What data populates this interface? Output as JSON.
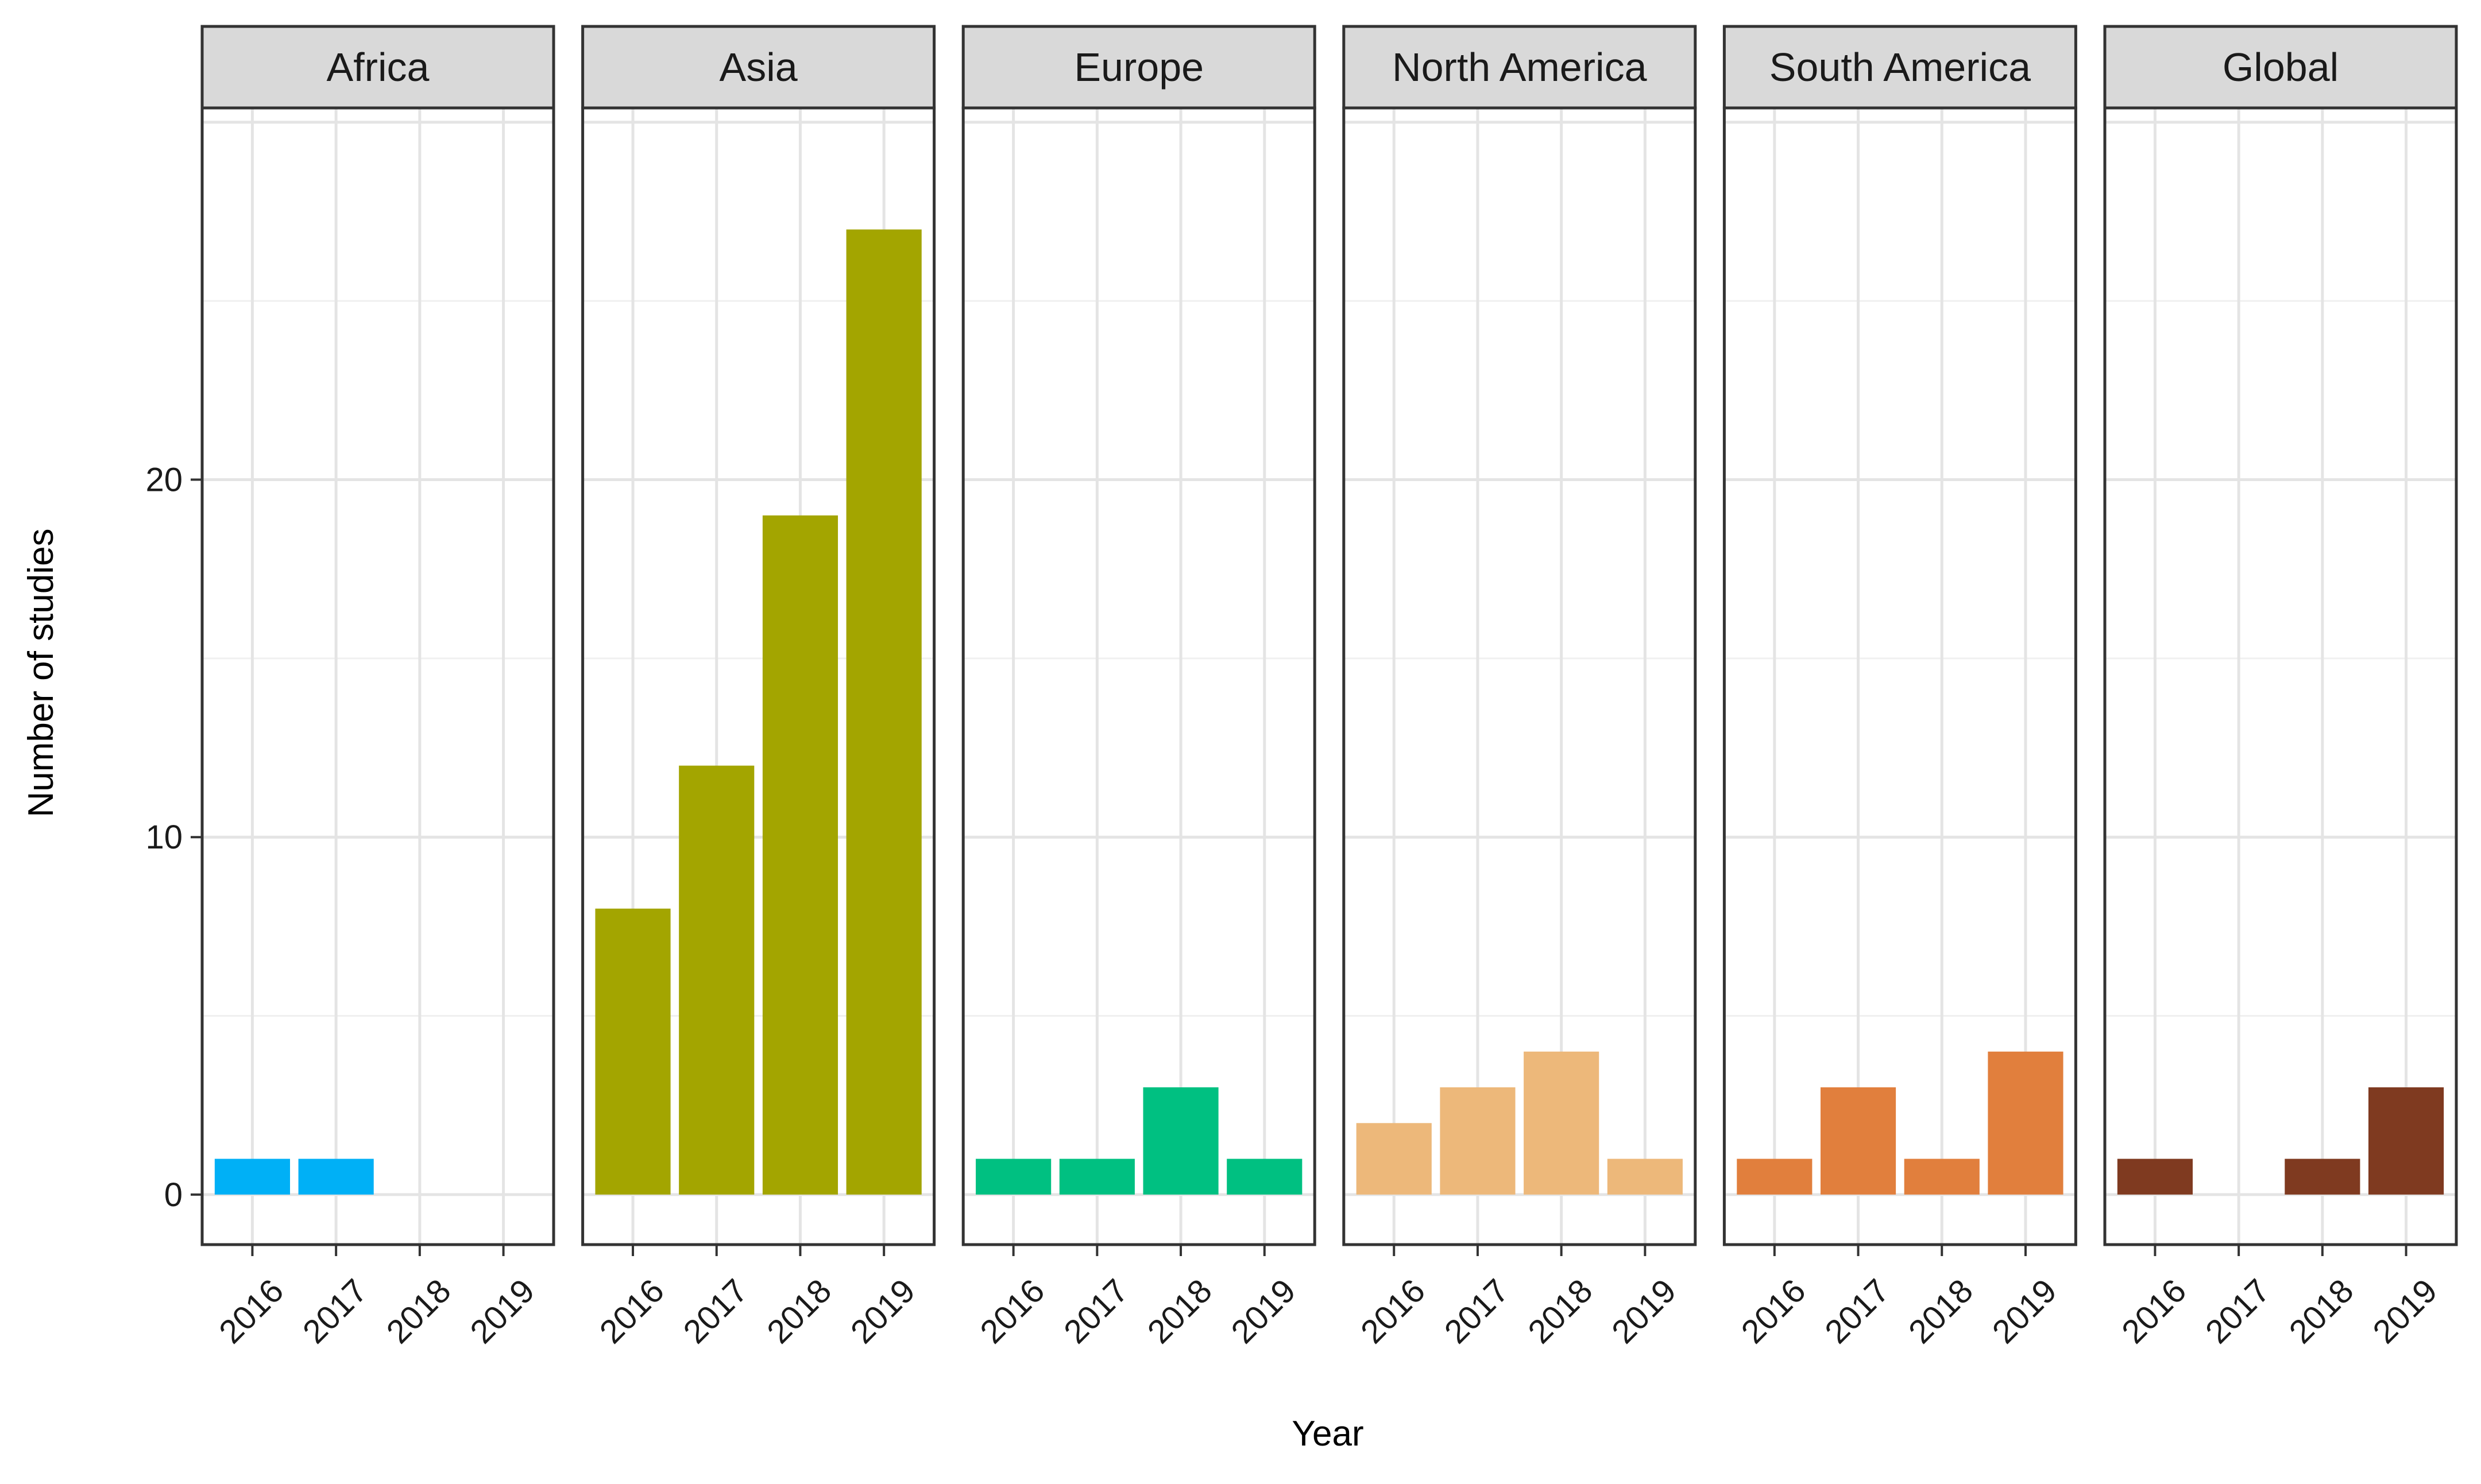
{
  "chart_data": {
    "type": "bar",
    "xlabel": "Year",
    "ylabel": "Number of studies",
    "ylim": [
      -1.4,
      30.4
    ],
    "y_ticks": [
      0,
      10,
      20
    ],
    "grid": true,
    "categories": [
      "2016",
      "2017",
      "2018",
      "2019"
    ],
    "panels": [
      {
        "name": "Africa",
        "color": "#00B0F6",
        "values": [
          1,
          1,
          0,
          0
        ]
      },
      {
        "name": "Asia",
        "color": "#A3A500",
        "values": [
          8,
          12,
          19,
          27
        ]
      },
      {
        "name": "Europe",
        "color": "#00C081",
        "values": [
          1,
          1,
          3,
          1
        ]
      },
      {
        "name": "North America",
        "color": "#EDB87A",
        "values": [
          2,
          3,
          4,
          1
        ]
      },
      {
        "name": "South America",
        "color": "#E17F3D",
        "values": [
          1,
          3,
          1,
          4
        ]
      },
      {
        "name": "Global",
        "color": "#7F3A20",
        "values": [
          1,
          0,
          1,
          3
        ]
      }
    ]
  }
}
